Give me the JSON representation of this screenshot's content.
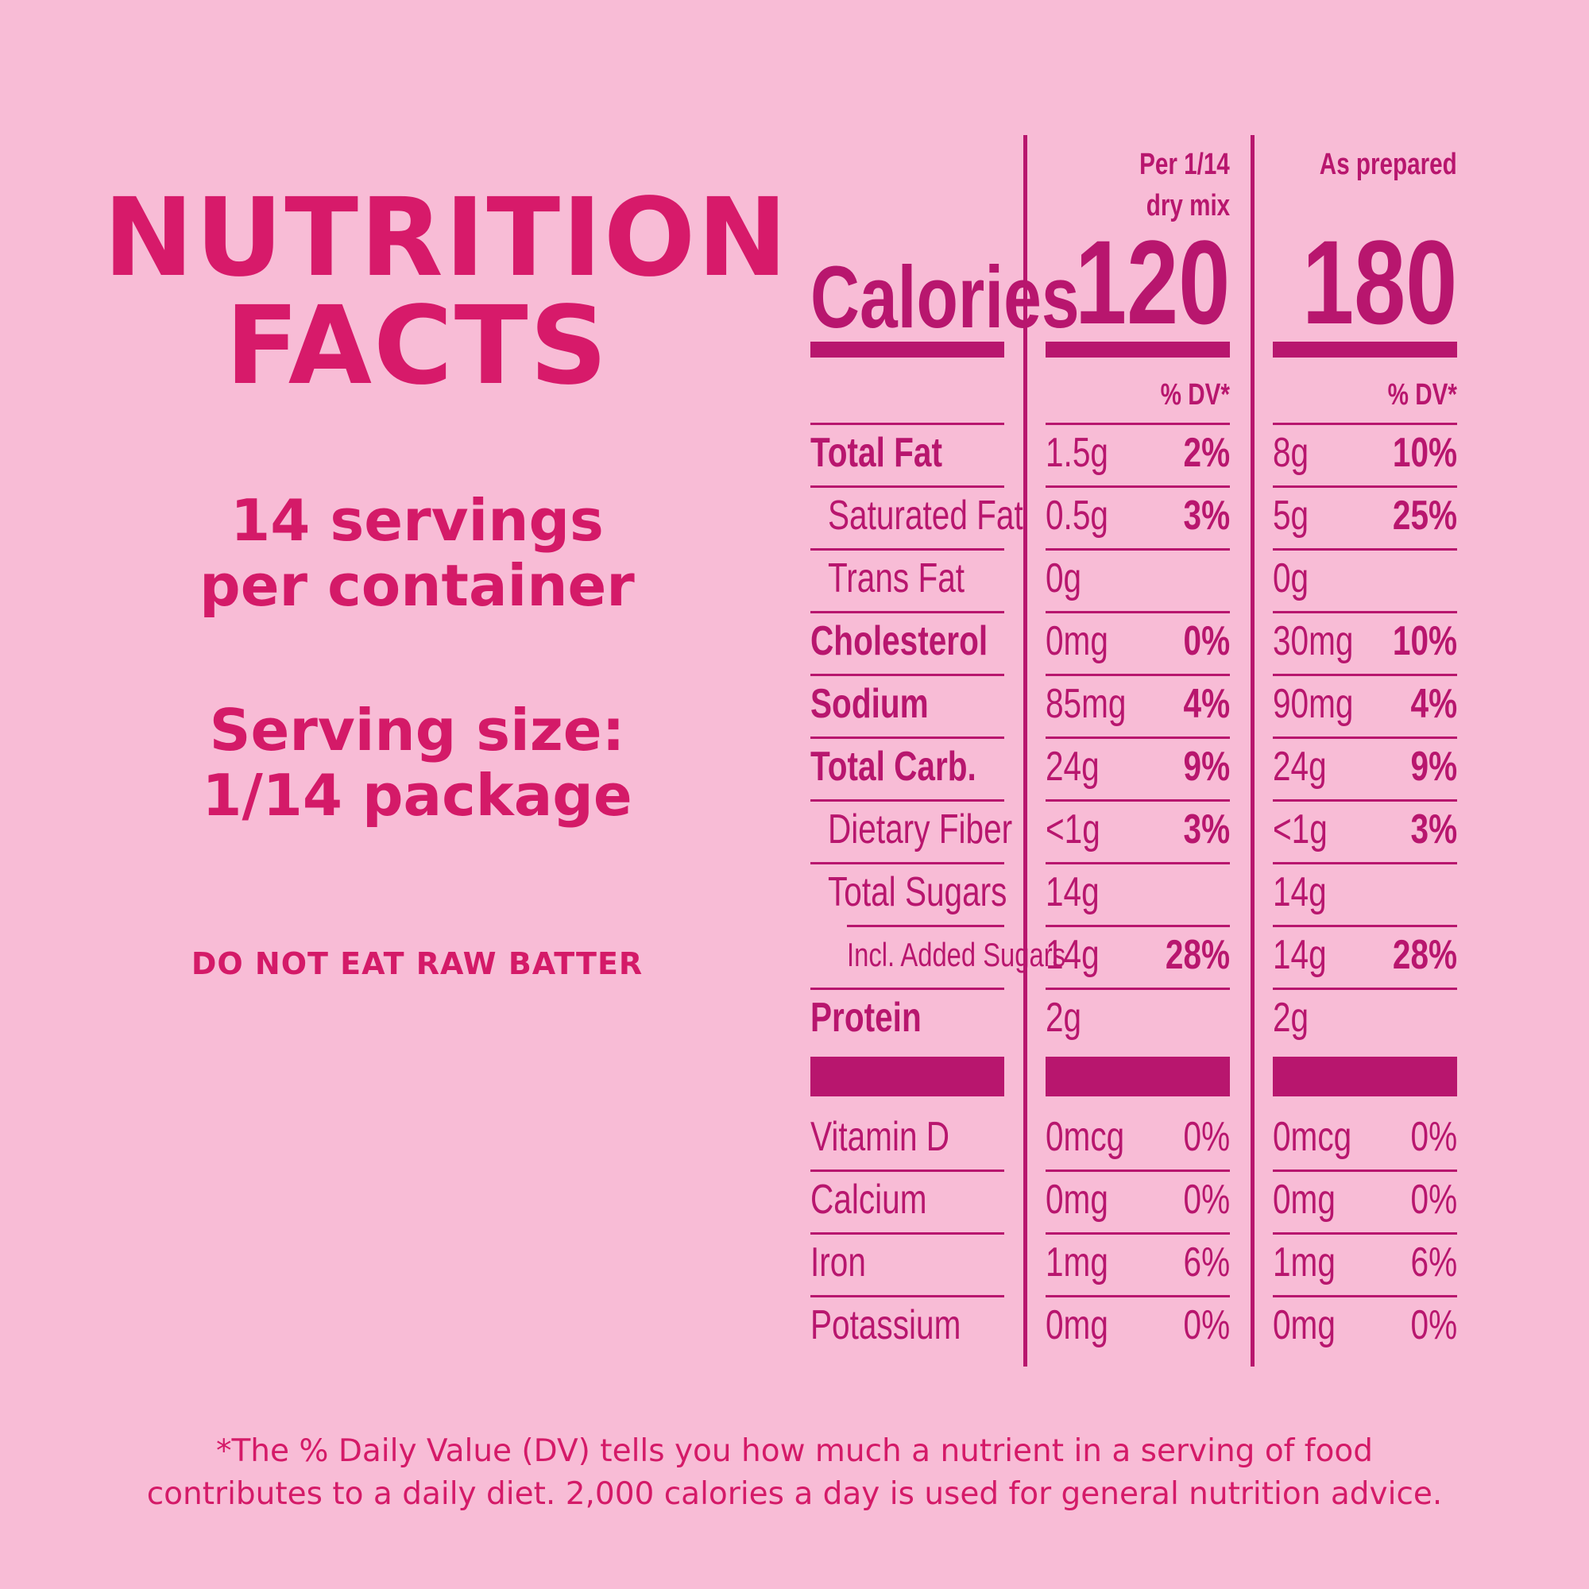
{
  "title": {
    "line1": "NUTRITION",
    "line2": "FACTS"
  },
  "servings": {
    "line1": "14 servings",
    "line2": "per container"
  },
  "serving_size": {
    "line1": "Serving size:",
    "line2": "1/14 package"
  },
  "warning": "DO NOT EAT RAW BATTER",
  "table": {
    "columns": [
      {
        "header_line1": "Per 1/14",
        "header_line2": "dry mix",
        "calories": "120"
      },
      {
        "header_line1": "",
        "header_line2": "As prepared",
        "calories": "180"
      }
    ],
    "calories_label": "Calories",
    "dv_label": "% DV*",
    "nutrients": [
      {
        "label": "Total Fat",
        "bold": true,
        "indent": 0,
        "c1": [
          "1.5g",
          "2%"
        ],
        "c2": [
          "8g",
          "10%"
        ]
      },
      {
        "label": "Saturated Fat",
        "bold": false,
        "indent": 1,
        "c1": [
          "0.5g",
          "3%"
        ],
        "c2": [
          "5g",
          "25%"
        ]
      },
      {
        "label": "Trans Fat",
        "bold": false,
        "indent": 1,
        "c1": [
          "0g",
          ""
        ],
        "c2": [
          "0g",
          ""
        ]
      },
      {
        "label": "Cholesterol",
        "bold": true,
        "indent": 0,
        "c1": [
          "0mg",
          "0%"
        ],
        "c2": [
          "30mg",
          "10%"
        ]
      },
      {
        "label": "Sodium",
        "bold": true,
        "indent": 0,
        "c1": [
          "85mg",
          "4%"
        ],
        "c2": [
          "90mg",
          "4%"
        ]
      },
      {
        "label": "Total Carb.",
        "bold": true,
        "indent": 0,
        "c1": [
          "24g",
          "9%"
        ],
        "c2": [
          "24g",
          "9%"
        ]
      },
      {
        "label": "Dietary Fiber",
        "bold": false,
        "indent": 1,
        "c1": [
          "<1g",
          "3%"
        ],
        "c2": [
          "<1g",
          "3%"
        ]
      },
      {
        "label": "Total Sugars",
        "bold": false,
        "indent": 1,
        "c1": [
          "14g",
          ""
        ],
        "c2": [
          "14g",
          ""
        ]
      },
      {
        "label": "Incl. Added Sugars",
        "bold": false,
        "indent": 2,
        "c1": [
          "14g",
          "28%"
        ],
        "c2": [
          "14g",
          "28%"
        ]
      },
      {
        "label": "Protein",
        "bold": true,
        "indent": 0,
        "c1": [
          "2g",
          ""
        ],
        "c2": [
          "2g",
          ""
        ]
      }
    ],
    "vitamins": [
      {
        "label": "Vitamin D",
        "c1": [
          "0mcg",
          "0%"
        ],
        "c2": [
          "0mcg",
          "0%"
        ]
      },
      {
        "label": "Calcium",
        "c1": [
          "0mg",
          "0%"
        ],
        "c2": [
          "0mg",
          "0%"
        ]
      },
      {
        "label": "Iron",
        "c1": [
          "1mg",
          "6%"
        ],
        "c2": [
          "1mg",
          "6%"
        ]
      },
      {
        "label": "Potassium",
        "c1": [
          "0mg",
          "0%"
        ],
        "c2": [
          "0mg",
          "0%"
        ]
      }
    ]
  },
  "footnote": {
    "line1": "*The % Daily Value (DV) tells you how much a nutrient in a serving of food",
    "line2": "contributes to a daily diet. 2,000 calories a day is used for general nutrition advice."
  }
}
